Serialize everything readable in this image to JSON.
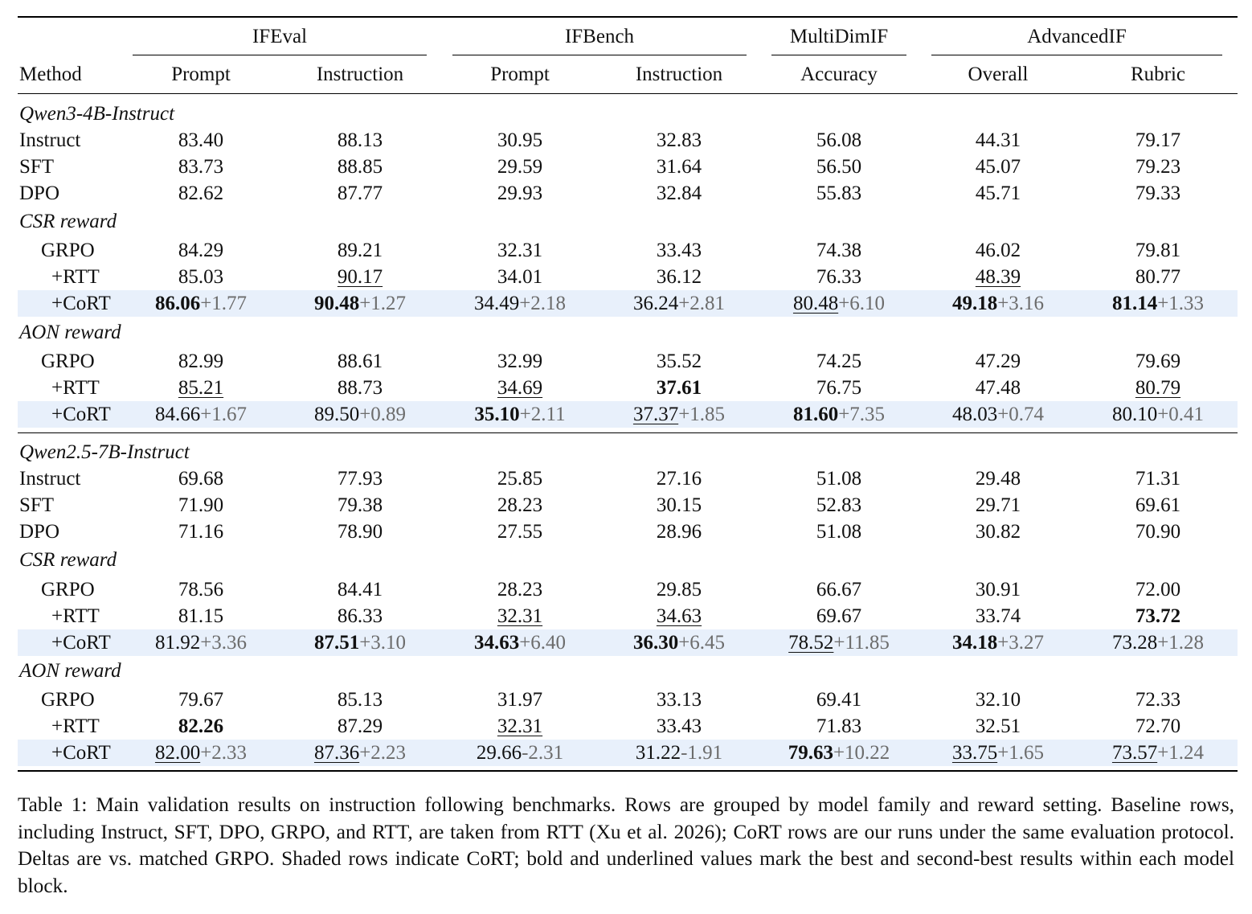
{
  "table": {
    "method_header": "Method",
    "groups": [
      {
        "label": "IFEval",
        "subs": [
          "Prompt",
          "Instruction"
        ]
      },
      {
        "label": "IFBench",
        "subs": [
          "Prompt",
          "Instruction"
        ]
      },
      {
        "label": "MultiDimIF",
        "subs": [
          "Accuracy"
        ]
      },
      {
        "label": "AdvancedIF",
        "subs": [
          "Overall",
          "Rubric"
        ]
      }
    ],
    "rows": [
      {
        "type": "group",
        "label": "Qwen3-4B-Instruct",
        "top": 105
      },
      {
        "type": "data",
        "label": "Instruct",
        "indent": 0,
        "top": 138,
        "cells": [
          {
            "v": "83.40"
          },
          {
            "v": "88.13"
          },
          {
            "v": "30.95"
          },
          {
            "v": "32.83"
          },
          {
            "v": "56.08"
          },
          {
            "v": "44.31"
          },
          {
            "v": "79.17"
          }
        ]
      },
      {
        "type": "data",
        "label": "SFT",
        "indent": 0,
        "top": 171,
        "cells": [
          {
            "v": "83.73"
          },
          {
            "v": "88.85"
          },
          {
            "v": "29.59"
          },
          {
            "v": "31.64"
          },
          {
            "v": "56.50"
          },
          {
            "v": "45.07"
          },
          {
            "v": "79.23"
          }
        ]
      },
      {
        "type": "data",
        "label": "DPO",
        "indent": 0,
        "top": 204,
        "cells": [
          {
            "v": "82.62"
          },
          {
            "v": "87.77"
          },
          {
            "v": "29.93"
          },
          {
            "v": "32.84"
          },
          {
            "v": "55.83"
          },
          {
            "v": "45.71"
          },
          {
            "v": "79.33"
          }
        ]
      },
      {
        "type": "group",
        "label": "CSR reward",
        "top": 239
      },
      {
        "type": "data",
        "label": "GRPO",
        "indent": 1,
        "top": 275,
        "cells": [
          {
            "v": "84.29"
          },
          {
            "v": "89.21"
          },
          {
            "v": "32.31"
          },
          {
            "v": "33.43"
          },
          {
            "v": "74.38"
          },
          {
            "v": "46.02"
          },
          {
            "v": "79.81"
          }
        ]
      },
      {
        "type": "data",
        "label": "+RTT",
        "indent": 2,
        "top": 308,
        "cells": [
          {
            "v": "85.03"
          },
          {
            "v": "90.17",
            "u": true
          },
          {
            "v": "34.01"
          },
          {
            "v": "36.12"
          },
          {
            "v": "76.33"
          },
          {
            "v": "48.39",
            "u": true
          },
          {
            "v": "80.77"
          }
        ]
      },
      {
        "type": "data",
        "label": "+CoRT",
        "indent": 2,
        "shaded": true,
        "top": 341,
        "cells": [
          {
            "v": "86.06",
            "b": true,
            "d": "+1.77"
          },
          {
            "v": "90.48",
            "b": true,
            "d": "+1.27"
          },
          {
            "v": "34.49",
            "d": "+2.18"
          },
          {
            "v": "36.24",
            "d": "+2.81"
          },
          {
            "v": "80.48",
            "u": true,
            "d": "+6.10"
          },
          {
            "v": "49.18",
            "b": true,
            "d": "+3.16"
          },
          {
            "v": "81.14",
            "b": true,
            "d": "+1.33"
          }
        ]
      },
      {
        "type": "group",
        "label": "AON reward",
        "top": 377
      },
      {
        "type": "data",
        "label": "GRPO",
        "indent": 1,
        "top": 413,
        "cells": [
          {
            "v": "82.99"
          },
          {
            "v": "88.61"
          },
          {
            "v": "32.99"
          },
          {
            "v": "35.52"
          },
          {
            "v": "74.25"
          },
          {
            "v": "47.29"
          },
          {
            "v": "79.69"
          }
        ]
      },
      {
        "type": "data",
        "label": "+RTT",
        "indent": 2,
        "top": 446,
        "cells": [
          {
            "v": "85.21",
            "u": true
          },
          {
            "v": "88.73"
          },
          {
            "v": "34.69",
            "u": true
          },
          {
            "v": "37.61",
            "b": true
          },
          {
            "v": "76.75"
          },
          {
            "v": "47.48"
          },
          {
            "v": "80.79",
            "u": true
          }
        ]
      },
      {
        "type": "data",
        "label": "+CoRT",
        "indent": 2,
        "shaded": true,
        "top": 479,
        "cells": [
          {
            "v": "84.66",
            "d": "+1.67"
          },
          {
            "v": "89.50",
            "d": "+0.89"
          },
          {
            "v": "35.10",
            "b": true,
            "d": "+2.11"
          },
          {
            "v": "37.37",
            "u": true,
            "d": "+1.85"
          },
          {
            "v": "81.60",
            "b": true,
            "d": "+7.35"
          },
          {
            "v": "48.03",
            "d": "+0.74"
          },
          {
            "v": "80.10",
            "d": "+0.41"
          }
        ]
      },
      {
        "type": "group",
        "label": "Qwen2.5-7B-Instruct",
        "top": 526
      },
      {
        "type": "data",
        "label": "Instruct",
        "indent": 0,
        "top": 559,
        "cells": [
          {
            "v": "69.68"
          },
          {
            "v": "77.93"
          },
          {
            "v": "25.85"
          },
          {
            "v": "27.16"
          },
          {
            "v": "51.08"
          },
          {
            "v": "29.48"
          },
          {
            "v": "71.31"
          }
        ]
      },
      {
        "type": "data",
        "label": "SFT",
        "indent": 0,
        "top": 592,
        "cells": [
          {
            "v": "71.90"
          },
          {
            "v": "79.38"
          },
          {
            "v": "28.23"
          },
          {
            "v": "30.15"
          },
          {
            "v": "52.83"
          },
          {
            "v": "29.71"
          },
          {
            "v": "69.61"
          }
        ]
      },
      {
        "type": "data",
        "label": "DPO",
        "indent": 0,
        "top": 625,
        "cells": [
          {
            "v": "71.16"
          },
          {
            "v": "78.90"
          },
          {
            "v": "27.55"
          },
          {
            "v": "28.96"
          },
          {
            "v": "51.08"
          },
          {
            "v": "30.82"
          },
          {
            "v": "70.90"
          }
        ]
      },
      {
        "type": "group",
        "label": "CSR reward",
        "top": 660
      },
      {
        "type": "data",
        "label": "GRPO",
        "indent": 1,
        "top": 697,
        "cells": [
          {
            "v": "78.56"
          },
          {
            "v": "84.41"
          },
          {
            "v": "28.23"
          },
          {
            "v": "29.85"
          },
          {
            "v": "66.67"
          },
          {
            "v": "30.91"
          },
          {
            "v": "72.00"
          }
        ]
      },
      {
        "type": "data",
        "label": "+RTT",
        "indent": 2,
        "top": 730,
        "cells": [
          {
            "v": "81.15"
          },
          {
            "v": "86.33"
          },
          {
            "v": "32.31",
            "u": true
          },
          {
            "v": "34.63",
            "u": true
          },
          {
            "v": "69.67"
          },
          {
            "v": "33.74"
          },
          {
            "v": "73.72",
            "b": true
          }
        ]
      },
      {
        "type": "data",
        "label": "+CoRT",
        "indent": 2,
        "shaded": true,
        "top": 763,
        "cells": [
          {
            "v": "81.92",
            "d": "+3.36"
          },
          {
            "v": "87.51",
            "b": true,
            "d": "+3.10"
          },
          {
            "v": "34.63",
            "b": true,
            "d": "+6.40"
          },
          {
            "v": "36.30",
            "b": true,
            "d": "+6.45"
          },
          {
            "v": "78.52",
            "u": true,
            "d": "+11.85"
          },
          {
            "v": "34.18",
            "b": true,
            "d": "+3.27"
          },
          {
            "v": "73.28",
            "d": "+1.28"
          }
        ]
      },
      {
        "type": "group",
        "label": "AON reward",
        "top": 798
      },
      {
        "type": "data",
        "label": "GRPO",
        "indent": 1,
        "top": 834,
        "cells": [
          {
            "v": "79.67"
          },
          {
            "v": "85.13"
          },
          {
            "v": "31.97"
          },
          {
            "v": "33.13"
          },
          {
            "v": "69.41"
          },
          {
            "v": "32.10"
          },
          {
            "v": "72.33"
          }
        ]
      },
      {
        "type": "data",
        "label": "+RTT",
        "indent": 2,
        "top": 867,
        "cells": [
          {
            "v": "82.26",
            "b": true
          },
          {
            "v": "87.29"
          },
          {
            "v": "32.31",
            "u": true
          },
          {
            "v": "33.43"
          },
          {
            "v": "71.83"
          },
          {
            "v": "32.51"
          },
          {
            "v": "72.70"
          }
        ]
      },
      {
        "type": "data",
        "label": "+CoRT",
        "indent": 2,
        "shaded": true,
        "top": 900,
        "cells": [
          {
            "v": "82.00",
            "u": true,
            "d": "+2.33"
          },
          {
            "v": "87.36",
            "u": true,
            "d": "+2.23"
          },
          {
            "v": "29.66",
            "d": "-2.31"
          },
          {
            "v": "31.22",
            "d": "-1.91"
          },
          {
            "v": "79.63",
            "b": true,
            "d": "+10.22"
          },
          {
            "v": "33.75",
            "u": true,
            "d": "+1.65"
          },
          {
            "v": "73.57",
            "u": true,
            "d": "+1.24"
          }
        ]
      }
    ]
  },
  "caption": "Table 1: Main validation results on instruction following benchmarks. Rows are grouped by model family and reward setting. Baseline rows, including Instruct, SFT, DPO, GRPO, and RTT, are taken from RTT (Xu et al. 2026); CoRT rows are our runs under the same evaluation protocol. Deltas are vs. matched GRPO. Shaded rows indicate CoRT; bold and underlined values mark the best and second-best results within each model block."
}
